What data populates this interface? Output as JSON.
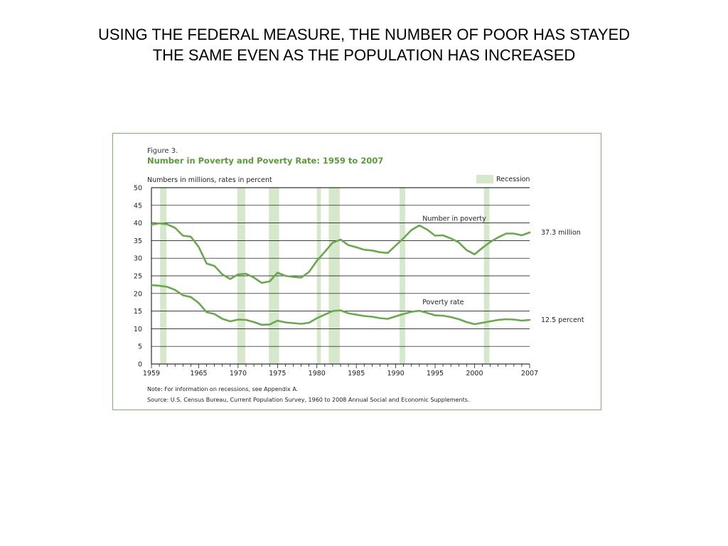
{
  "slide": {
    "title": "USING THE FEDERAL MEASURE, THE NUMBER OF POOR HAS STAYED THE SAME EVEN AS THE POPULATION HAS INCREASED"
  },
  "colors": {
    "line": "#6aa84f",
    "recession": "#d5e8cc",
    "figure_title": "#5b9a3c",
    "frame": "#7fb36a",
    "grid": "#000000"
  },
  "chart_data": {
    "type": "line",
    "figure_label": "Figure 3.",
    "title": "Number in Poverty and Poverty Rate:  1959 to 2007",
    "ylabel": "Numbers in millions, rates in percent",
    "legend": {
      "label": "Recession",
      "placement": "top-right"
    },
    "ylim": [
      0,
      50
    ],
    "yticks": [
      0,
      5,
      10,
      15,
      20,
      25,
      30,
      35,
      40,
      45,
      50
    ],
    "xlim": [
      1959,
      2007
    ],
    "xtick_labels": [
      1959,
      1965,
      1970,
      1975,
      1980,
      1985,
      1990,
      1995,
      2000,
      2007
    ],
    "grid": true,
    "recessions": [
      [
        1960.1,
        1960.9
      ],
      [
        1969.9,
        1970.9
      ],
      [
        1973.9,
        1975.2
      ],
      [
        1980.0,
        1980.5
      ],
      [
        1981.5,
        1982.9
      ],
      [
        1990.5,
        1991.2
      ],
      [
        2001.2,
        2001.9
      ]
    ],
    "x": [
      1959,
      1960,
      1961,
      1962,
      1963,
      1964,
      1965,
      1966,
      1967,
      1968,
      1969,
      1970,
      1971,
      1972,
      1973,
      1974,
      1975,
      1976,
      1977,
      1978,
      1979,
      1980,
      1981,
      1982,
      1983,
      1984,
      1985,
      1986,
      1987,
      1988,
      1989,
      1990,
      1991,
      1992,
      1993,
      1994,
      1995,
      1996,
      1997,
      1998,
      1999,
      2000,
      2001,
      2002,
      2003,
      2004,
      2005,
      2006,
      2007
    ],
    "series": [
      {
        "name": "Number in poverty",
        "end_label": "37.3 million",
        "values": [
          39.5,
          39.9,
          39.6,
          38.6,
          36.4,
          36.1,
          33.2,
          28.5,
          27.8,
          25.4,
          24.1,
          25.4,
          25.6,
          24.5,
          23.0,
          23.4,
          25.9,
          25.0,
          24.7,
          24.5,
          26.1,
          29.3,
          31.8,
          34.4,
          35.3,
          33.7,
          33.1,
          32.4,
          32.2,
          31.7,
          31.5,
          33.6,
          35.7,
          38.0,
          39.3,
          38.1,
          36.4,
          36.5,
          35.6,
          34.5,
          32.3,
          31.1,
          32.9,
          34.6,
          35.9,
          37.0,
          37.0,
          36.5,
          37.3
        ]
      },
      {
        "name": "Poverty rate",
        "end_label": "12.5 percent",
        "values": [
          22.4,
          22.2,
          21.9,
          21.0,
          19.5,
          19.0,
          17.3,
          14.7,
          14.2,
          12.8,
          12.1,
          12.6,
          12.5,
          11.9,
          11.1,
          11.2,
          12.3,
          11.8,
          11.6,
          11.4,
          11.7,
          13.0,
          14.0,
          15.0,
          15.2,
          14.4,
          14.0,
          13.6,
          13.4,
          13.0,
          12.8,
          13.5,
          14.2,
          14.8,
          15.1,
          14.5,
          13.8,
          13.7,
          13.3,
          12.7,
          11.9,
          11.3,
          11.7,
          12.1,
          12.5,
          12.7,
          12.6,
          12.3,
          12.5
        ]
      }
    ],
    "note": "Note:  For information on recessions, see Appendix A.",
    "source": "Source:  U.S. Census Bureau, Current Population Survey, 1960 to 2008 Annual Social and Economic Supplements."
  }
}
